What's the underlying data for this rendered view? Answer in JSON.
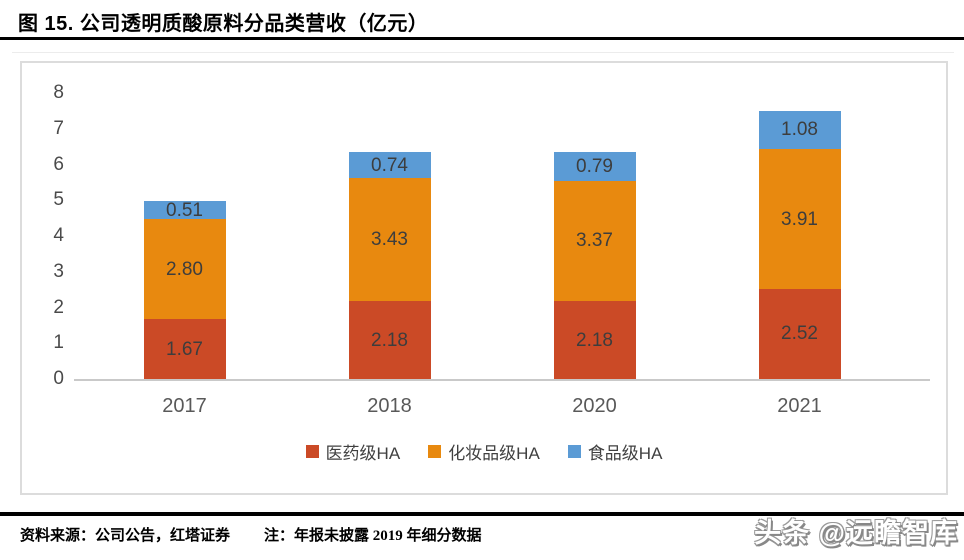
{
  "header": {
    "title": "图 15. 公司透明质酸原料分品类营收（亿元）"
  },
  "chart_data": {
    "type": "bar",
    "stacked": true,
    "title": "公司透明质酸原料分品类营收（亿元）",
    "xlabel": "",
    "ylabel": "",
    "categories": [
      "2017",
      "2018",
      "2020",
      "2021"
    ],
    "series": [
      {
        "name": "医药级HA",
        "color": "#cb4a26",
        "values": [
          1.67,
          2.18,
          2.18,
          2.52
        ]
      },
      {
        "name": "化妆品级HA",
        "color": "#e8890f",
        "values": [
          2.8,
          3.43,
          3.37,
          3.91
        ]
      },
      {
        "name": "食品级HA",
        "color": "#5b9bd5",
        "values": [
          0.51,
          0.74,
          0.79,
          1.08
        ]
      }
    ],
    "ylim": [
      0,
      8
    ],
    "yticks": [
      0,
      1,
      2,
      3,
      4,
      5,
      6,
      7,
      8
    ],
    "grid": false,
    "legend_position": "bottom",
    "label_decimals": 2
  },
  "footer": {
    "source": "资料来源：公司公告，红塔证券",
    "note": "注：年报未披露 2019 年细分数据",
    "watermark": "头条 @远瞻智库"
  }
}
